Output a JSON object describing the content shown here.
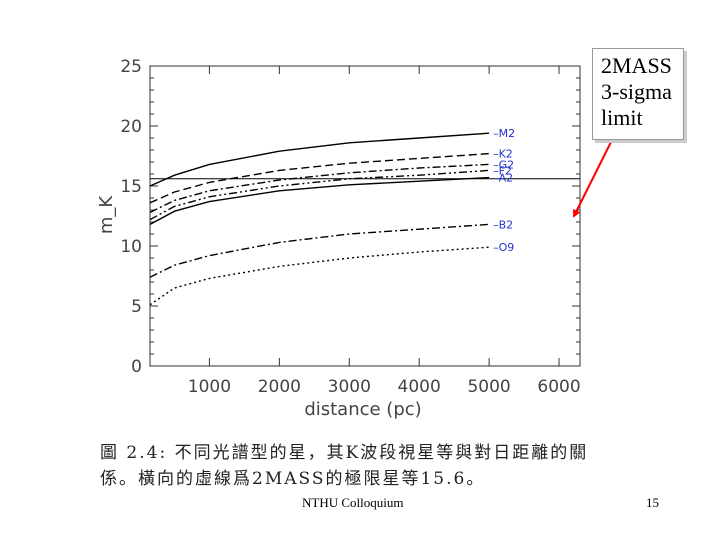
{
  "chart_data": {
    "type": "line",
    "xlabel": "distance (pc)",
    "ylabel": "m_K",
    "xlim": [
      150,
      6300
    ],
    "ylim": [
      0,
      25
    ],
    "xticks": [
      1000,
      2000,
      3000,
      4000,
      5000,
      6000
    ],
    "xtick_labels": [
      "1000",
      "2000",
      "3000",
      "4000",
      "5000",
      "6000"
    ],
    "yticks": [
      0,
      5,
      10,
      15,
      20,
      25
    ],
    "ytick_labels": [
      "0",
      "5",
      "10",
      "15",
      "20",
      "25"
    ],
    "hline": 15.6,
    "series": [
      {
        "name": "M2",
        "style": "solid",
        "x": [
          150,
          500,
          1000,
          2000,
          3000,
          4000,
          5000
        ],
        "y": [
          15.0,
          15.9,
          16.8,
          17.9,
          18.6,
          19.0,
          19.4
        ]
      },
      {
        "name": "K2",
        "style": "dashed",
        "x": [
          150,
          500,
          1000,
          2000,
          3000,
          4000,
          5000
        ],
        "y": [
          13.6,
          14.5,
          15.3,
          16.3,
          16.9,
          17.3,
          17.7
        ]
      },
      {
        "name": "G2",
        "style": "dashdot",
        "x": [
          150,
          500,
          1000,
          2000,
          3000,
          4000,
          5000
        ],
        "y": [
          12.8,
          13.8,
          14.6,
          15.5,
          16.1,
          16.5,
          16.8
        ]
      },
      {
        "name": "F2",
        "style": "dashdotdot",
        "x": [
          150,
          500,
          1000,
          2000,
          3000,
          4000,
          5000
        ],
        "y": [
          12.2,
          13.3,
          14.1,
          15.0,
          15.6,
          15.9,
          16.3
        ]
      },
      {
        "name": "A2",
        "style": "solid",
        "x": [
          150,
          500,
          1000,
          2000,
          3000,
          4000,
          5000
        ],
        "y": [
          11.8,
          12.9,
          13.7,
          14.6,
          15.1,
          15.4,
          15.7
        ]
      },
      {
        "name": "B2",
        "style": "dashdot",
        "x": [
          150,
          500,
          1000,
          2000,
          3000,
          4000,
          5000
        ],
        "y": [
          7.4,
          8.4,
          9.2,
          10.3,
          11.0,
          11.4,
          11.8
        ]
      },
      {
        "name": "O9",
        "style": "dotted",
        "x": [
          150,
          500,
          1000,
          2000,
          3000,
          4000,
          5000
        ],
        "y": [
          5.1,
          6.5,
          7.3,
          8.3,
          9.0,
          9.5,
          9.9
        ]
      }
    ]
  },
  "callout": {
    "lines": [
      "2MASS",
      "3-sigma",
      "limit"
    ]
  },
  "caption": {
    "line1": "圖 2.4: 不同光譜型的星，其K波段視星等與對日距離的關",
    "line2": "係。橫向的虛線爲2MASS的極限星等15.6。"
  },
  "footer": {
    "center": "NTHU Colloquium",
    "page": "15"
  },
  "colors": {
    "series_label": "#2233cc",
    "arrow": "#ff0000",
    "axis": "#333333"
  }
}
